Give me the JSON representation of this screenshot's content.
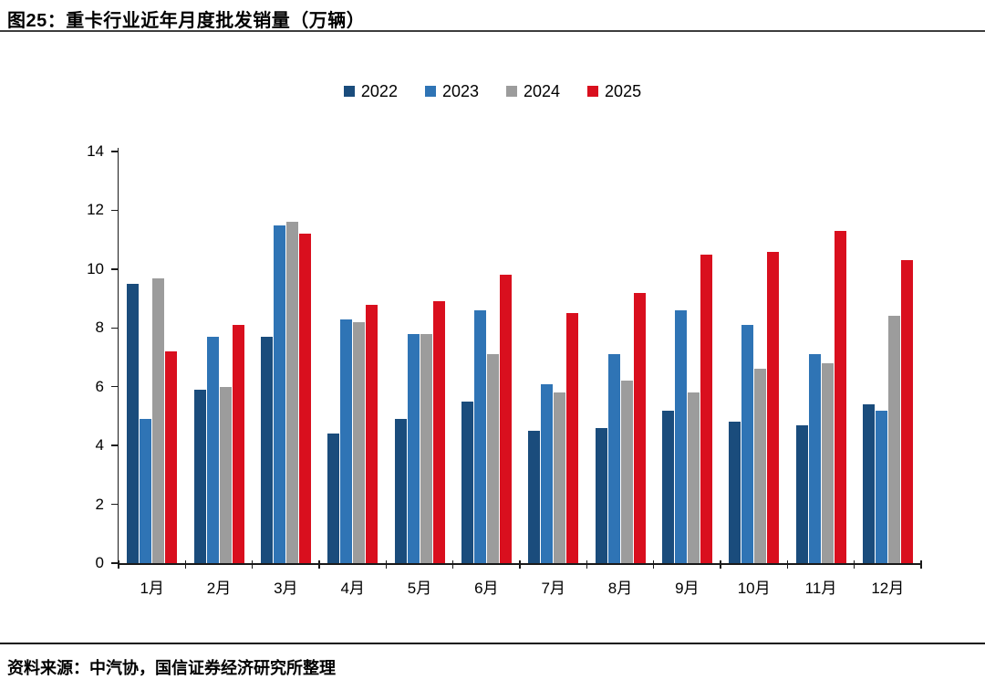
{
  "header": {
    "title": "图25：重卡行业近年月度批发销量（万辆）"
  },
  "footer": {
    "source": "资料来源：中汽协，国信证券经济研究所整理"
  },
  "colors": {
    "axis": "#1a1a1a",
    "title_rule": "#3d3d3d",
    "footer_rule": "#111111"
  },
  "chart_data": {
    "type": "bar",
    "title": "重卡行业近年月度批发销量（万辆）",
    "categories": [
      "1月",
      "2月",
      "3月",
      "4月",
      "5月",
      "6月",
      "7月",
      "8月",
      "9月",
      "10月",
      "11月",
      "12月"
    ],
    "series": [
      {
        "name": "2022",
        "color": "#1A4C7C",
        "values": [
          9.5,
          5.9,
          7.7,
          4.4,
          4.9,
          5.5,
          4.5,
          4.6,
          5.2,
          4.8,
          4.7,
          5.4
        ]
      },
      {
        "name": "2023",
        "color": "#2F74B5",
        "values": [
          4.9,
          7.7,
          11.5,
          8.3,
          7.8,
          8.6,
          6.1,
          7.1,
          8.6,
          8.1,
          7.1,
          5.2
        ]
      },
      {
        "name": "2024",
        "color": "#9C9C9C",
        "values": [
          9.7,
          6.0,
          11.6,
          8.2,
          7.8,
          7.1,
          5.8,
          6.2,
          5.8,
          6.6,
          6.8,
          8.4
        ]
      },
      {
        "name": "2025",
        "color": "#D90F1E",
        "values": [
          7.2,
          8.1,
          11.2,
          8.8,
          8.9,
          9.8,
          8.5,
          9.2,
          10.5,
          10.6,
          11.3,
          10.3
        ]
      }
    ],
    "xlabel": "",
    "ylabel": "",
    "ylim": [
      0,
      14
    ],
    "ytick_step": 2,
    "grid": false,
    "legend_position": "top-center"
  }
}
